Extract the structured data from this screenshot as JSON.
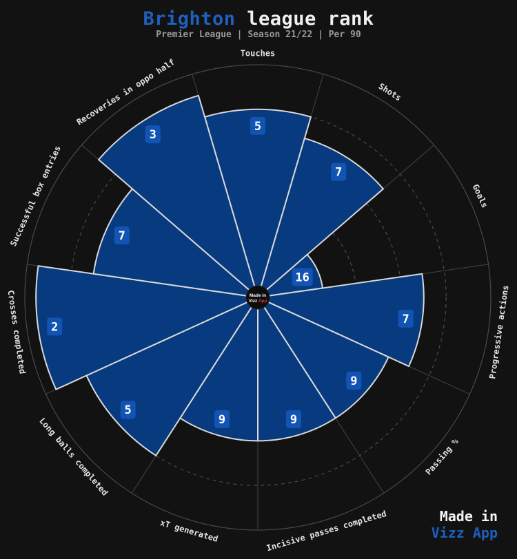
{
  "header": {
    "title_team": "Brighton",
    "title_rest": "league rank",
    "subtitle": "Premier League | Season 21/22 | Per 90"
  },
  "branding": {
    "line1": "Made in",
    "line2": "Vizz App",
    "center_line1": "Made in",
    "center_line2_a": "Vizz",
    "center_line2_b": "App"
  },
  "colors": {
    "background": "#121212",
    "slice_fill": "#083a80",
    "slice_stroke": "#d8d8d8",
    "value_box": "#1254b4",
    "team_accent": "#1f5fbd",
    "center_accent": "#e0314b"
  },
  "chart_data": {
    "type": "radar-bar",
    "title": "Brighton league rank",
    "subtitle": "Premier League | Season 21/22 | Per 90",
    "categories": [
      "Touches",
      "Shots",
      "Goals",
      "Progressive actions",
      "Passing %",
      "Incisive passes completed",
      "xT generated",
      "Long balls completed",
      "Crosses completed",
      "Successful box entries",
      "Recoveries in oppo half"
    ],
    "values": [
      5,
      7,
      16,
      7,
      9,
      9,
      9,
      5,
      2,
      7,
      3
    ],
    "rank_range": [
      1,
      20
    ],
    "grid": true
  }
}
